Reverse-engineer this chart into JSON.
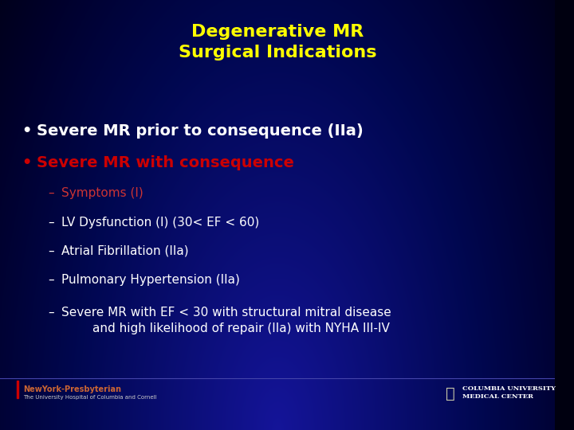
{
  "title_line1": "Degenerative MR",
  "title_line2": "Surgical Indications",
  "title_color": "#FFFF00",
  "bullet1": "Severe MR prior to consequence (IIa)",
  "bullet1_color": "#FFFFFF",
  "bullet2": "Severe MR with consequence",
  "bullet2_color": "#CC0000",
  "sub_items": [
    {
      "text": "Symptoms (I)",
      "color": "#CC3333"
    },
    {
      "text": "LV Dysfunction (I) (30< EF < 60)",
      "color": "#FFFFFF"
    },
    {
      "text": "Atrial Fibrillation (IIa)",
      "color": "#FFFFFF"
    },
    {
      "text": "Pulmonary Hypertension (IIa)",
      "color": "#FFFFFF"
    },
    {
      "text": "Severe MR with EF < 30 with structural mitral disease\n        and high likelihood of repair (IIa) with NYHA III-IV",
      "color": "#FFFFFF"
    }
  ],
  "footer_left_line1": "NewYork-Presbyterian",
  "footer_left_line2": "The University Hospital of Columbia and Cornell",
  "footer_right_line1": "COLUMBIA UNIVERSITY",
  "footer_right_line2": "MEDICAL CENTER",
  "title_fontsize": 16,
  "bullet_fontsize": 14,
  "sub_fontsize": 11
}
